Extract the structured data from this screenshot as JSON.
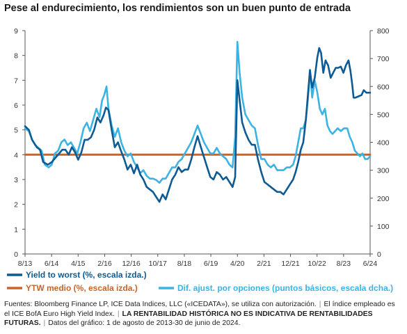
{
  "title": "Pese al endurecimiento, los rendimientos son un buen punto de entrada",
  "colors": {
    "ytw": "#0d5a94",
    "oas": "#3bb3e3",
    "avg": "#c8642a",
    "axis": "#555555"
  },
  "chart_data": {
    "type": "line",
    "x_tick_labels": [
      "8/13",
      "6/14",
      "4/15",
      "2/16",
      "12/16",
      "10/17",
      "8/18",
      "6/19",
      "4/20",
      "2/21",
      "12/21",
      "10/22",
      "8/23",
      "6/24"
    ],
    "left_axis": {
      "ylim": [
        0,
        9
      ],
      "ticks": [
        0,
        1,
        2,
        3,
        4,
        5,
        6,
        7,
        8,
        9
      ]
    },
    "right_axis": {
      "ylim": [
        0,
        800
      ],
      "ticks": [
        0,
        100,
        200,
        300,
        400,
        500,
        600,
        700,
        800
      ]
    },
    "series": [
      {
        "name": "Yield to worst (%, escala izda.)",
        "axis": "left",
        "color": "#0d5a94",
        "points": [
          [
            2013.58,
            5.15
          ],
          [
            2013.7,
            5.0
          ],
          [
            2013.8,
            4.6
          ],
          [
            2013.95,
            4.3
          ],
          [
            2014.05,
            4.2
          ],
          [
            2014.15,
            3.7
          ],
          [
            2014.3,
            3.6
          ],
          [
            2014.42,
            3.7
          ],
          [
            2014.55,
            3.9
          ],
          [
            2014.65,
            4.05
          ],
          [
            2014.75,
            4.2
          ],
          [
            2014.85,
            4.2
          ],
          [
            2014.95,
            4.0
          ],
          [
            2015.05,
            4.3
          ],
          [
            2015.15,
            4.1
          ],
          [
            2015.25,
            3.8
          ],
          [
            2015.35,
            4.1
          ],
          [
            2015.45,
            4.6
          ],
          [
            2015.55,
            4.6
          ],
          [
            2015.65,
            4.7
          ],
          [
            2015.75,
            5.0
          ],
          [
            2015.85,
            5.5
          ],
          [
            2015.95,
            5.3
          ],
          [
            2016.05,
            5.6
          ],
          [
            2016.12,
            5.9
          ],
          [
            2016.2,
            5.8
          ],
          [
            2016.3,
            5.0
          ],
          [
            2016.4,
            4.3
          ],
          [
            2016.5,
            4.5
          ],
          [
            2016.58,
            4.2
          ],
          [
            2016.7,
            3.8
          ],
          [
            2016.8,
            3.4
          ],
          [
            2016.9,
            3.6
          ],
          [
            2017.0,
            3.25
          ],
          [
            2017.1,
            3.6
          ],
          [
            2017.2,
            3.2
          ],
          [
            2017.3,
            3.0
          ],
          [
            2017.4,
            2.7
          ],
          [
            2017.5,
            2.6
          ],
          [
            2017.6,
            2.5
          ],
          [
            2017.7,
            2.3
          ],
          [
            2017.8,
            2.1
          ],
          [
            2017.9,
            2.4
          ],
          [
            2018.0,
            2.2
          ],
          [
            2018.1,
            2.6
          ],
          [
            2018.2,
            3.0
          ],
          [
            2018.3,
            3.2
          ],
          [
            2018.4,
            3.5
          ],
          [
            2018.5,
            3.3
          ],
          [
            2018.6,
            3.4
          ],
          [
            2018.7,
            3.4
          ],
          [
            2018.8,
            3.8
          ],
          [
            2018.9,
            4.3
          ],
          [
            2019.0,
            4.75
          ],
          [
            2019.08,
            4.4
          ],
          [
            2019.2,
            3.9
          ],
          [
            2019.3,
            3.5
          ],
          [
            2019.4,
            3.1
          ],
          [
            2019.5,
            3.0
          ],
          [
            2019.6,
            3.3
          ],
          [
            2019.7,
            3.2
          ],
          [
            2019.8,
            3.0
          ],
          [
            2019.9,
            3.1
          ],
          [
            2020.0,
            2.9
          ],
          [
            2020.1,
            2.7
          ],
          [
            2020.18,
            3.1
          ],
          [
            2020.25,
            7.0
          ],
          [
            2020.32,
            6.2
          ],
          [
            2020.4,
            5.3
          ],
          [
            2020.5,
            4.9
          ],
          [
            2020.6,
            4.6
          ],
          [
            2020.7,
            4.4
          ],
          [
            2020.8,
            4.4
          ],
          [
            2020.9,
            3.8
          ],
          [
            2021.0,
            3.3
          ],
          [
            2021.1,
            2.9
          ],
          [
            2021.2,
            2.8
          ],
          [
            2021.3,
            2.7
          ],
          [
            2021.4,
            2.6
          ],
          [
            2021.5,
            2.5
          ],
          [
            2021.6,
            2.5
          ],
          [
            2021.7,
            2.4
          ],
          [
            2021.8,
            2.6
          ],
          [
            2021.9,
            2.8
          ],
          [
            2022.0,
            3.0
          ],
          [
            2022.08,
            3.3
          ],
          [
            2022.16,
            3.7
          ],
          [
            2022.24,
            4.2
          ],
          [
            2022.32,
            4.5
          ],
          [
            2022.4,
            5.4
          ],
          [
            2022.47,
            6.5
          ],
          [
            2022.53,
            7.4
          ],
          [
            2022.6,
            6.7
          ],
          [
            2022.68,
            7.1
          ],
          [
            2022.76,
            7.9
          ],
          [
            2022.82,
            8.3
          ],
          [
            2022.88,
            8.1
          ],
          [
            2022.95,
            7.3
          ],
          [
            2023.02,
            7.8
          ],
          [
            2023.1,
            7.6
          ],
          [
            2023.18,
            7.1
          ],
          [
            2023.26,
            7.3
          ],
          [
            2023.34,
            7.5
          ],
          [
            2023.42,
            7.5
          ],
          [
            2023.5,
            7.55
          ],
          [
            2023.58,
            7.3
          ],
          [
            2023.66,
            7.6
          ],
          [
            2023.74,
            7.8
          ],
          [
            2023.8,
            7.4
          ],
          [
            2023.86,
            6.8
          ],
          [
            2023.9,
            6.3
          ],
          [
            2023.96,
            6.3
          ],
          [
            2024.05,
            6.35
          ],
          [
            2024.15,
            6.4
          ],
          [
            2024.22,
            6.6
          ],
          [
            2024.3,
            6.5
          ],
          [
            2024.42,
            6.5
          ]
        ]
      },
      {
        "name": "Dif. ajust. por opciones (puntos básicos, escala dcha.)",
        "axis": "right",
        "color": "#3bb3e3",
        "points": [
          [
            2013.58,
            450
          ],
          [
            2013.7,
            440
          ],
          [
            2013.8,
            410
          ],
          [
            2013.9,
            390
          ],
          [
            2014.0,
            380
          ],
          [
            2014.1,
            370
          ],
          [
            2014.2,
            320
          ],
          [
            2014.32,
            310
          ],
          [
            2014.42,
            320
          ],
          [
            2014.52,
            360
          ],
          [
            2014.62,
            370
          ],
          [
            2014.72,
            400
          ],
          [
            2014.82,
            410
          ],
          [
            2014.92,
            390
          ],
          [
            2015.02,
            400
          ],
          [
            2015.12,
            380
          ],
          [
            2015.22,
            360
          ],
          [
            2015.32,
            400
          ],
          [
            2015.42,
            450
          ],
          [
            2015.52,
            470
          ],
          [
            2015.62,
            440
          ],
          [
            2015.72,
            480
          ],
          [
            2015.82,
            520
          ],
          [
            2015.92,
            490
          ],
          [
            2016.0,
            550
          ],
          [
            2016.07,
            570
          ],
          [
            2016.14,
            600
          ],
          [
            2016.2,
            520
          ],
          [
            2016.3,
            460
          ],
          [
            2016.4,
            420
          ],
          [
            2016.5,
            450
          ],
          [
            2016.6,
            400
          ],
          [
            2016.7,
            370
          ],
          [
            2016.8,
            350
          ],
          [
            2016.9,
            360
          ],
          [
            2017.0,
            330
          ],
          [
            2017.1,
            310
          ],
          [
            2017.2,
            290
          ],
          [
            2017.3,
            300
          ],
          [
            2017.4,
            280
          ],
          [
            2017.5,
            270
          ],
          [
            2017.6,
            270
          ],
          [
            2017.7,
            265
          ],
          [
            2017.8,
            255
          ],
          [
            2017.9,
            270
          ],
          [
            2018.0,
            270
          ],
          [
            2018.1,
            290
          ],
          [
            2018.2,
            310
          ],
          [
            2018.3,
            310
          ],
          [
            2018.4,
            330
          ],
          [
            2018.5,
            340
          ],
          [
            2018.6,
            360
          ],
          [
            2018.7,
            380
          ],
          [
            2018.8,
            400
          ],
          [
            2018.9,
            430
          ],
          [
            2019.0,
            460
          ],
          [
            2019.1,
            430
          ],
          [
            2019.2,
            400
          ],
          [
            2019.3,
            380
          ],
          [
            2019.4,
            360
          ],
          [
            2019.5,
            360
          ],
          [
            2019.6,
            380
          ],
          [
            2019.7,
            360
          ],
          [
            2019.8,
            350
          ],
          [
            2019.9,
            340
          ],
          [
            2020.0,
            320
          ],
          [
            2020.1,
            310
          ],
          [
            2020.18,
            420
          ],
          [
            2020.25,
            760
          ],
          [
            2020.32,
            650
          ],
          [
            2020.4,
            560
          ],
          [
            2020.5,
            500
          ],
          [
            2020.6,
            480
          ],
          [
            2020.7,
            460
          ],
          [
            2020.8,
            450
          ],
          [
            2020.9,
            390
          ],
          [
            2021.0,
            340
          ],
          [
            2021.1,
            340
          ],
          [
            2021.2,
            320
          ],
          [
            2021.3,
            310
          ],
          [
            2021.4,
            320
          ],
          [
            2021.5,
            300
          ],
          [
            2021.6,
            300
          ],
          [
            2021.7,
            300
          ],
          [
            2021.8,
            310
          ],
          [
            2021.9,
            310
          ],
          [
            2022.0,
            320
          ],
          [
            2022.08,
            350
          ],
          [
            2022.16,
            400
          ],
          [
            2022.24,
            450
          ],
          [
            2022.32,
            450
          ],
          [
            2022.4,
            480
          ],
          [
            2022.47,
            560
          ],
          [
            2022.53,
            660
          ],
          [
            2022.6,
            560
          ],
          [
            2022.68,
            620
          ],
          [
            2022.76,
            580
          ],
          [
            2022.84,
            520
          ],
          [
            2022.92,
            500
          ],
          [
            2023.0,
            520
          ],
          [
            2023.08,
            460
          ],
          [
            2023.16,
            440
          ],
          [
            2023.24,
            430
          ],
          [
            2023.32,
            440
          ],
          [
            2023.4,
            450
          ],
          [
            2023.5,
            440
          ],
          [
            2023.6,
            450
          ],
          [
            2023.7,
            450
          ],
          [
            2023.78,
            420
          ],
          [
            2023.86,
            400
          ],
          [
            2023.94,
            370
          ],
          [
            2024.02,
            360
          ],
          [
            2024.1,
            350
          ],
          [
            2024.18,
            360
          ],
          [
            2024.26,
            340
          ],
          [
            2024.34,
            340
          ],
          [
            2024.42,
            350
          ]
        ]
      },
      {
        "name": "YTW medio (%, escala izda.)",
        "axis": "left",
        "color": "#c8642a",
        "points": [
          [
            2013.58,
            4.0
          ],
          [
            2024.42,
            4.0
          ]
        ]
      }
    ],
    "legend": [
      {
        "label": "Yield to worst (%, escala izda.)",
        "color": "#0d5a94"
      },
      {
        "label": "YTW medio (%, escala izda.)",
        "color": "#c8642a"
      },
      {
        "label": "Dif. ajust. por opciones (puntos básicos, escala dcha.)",
        "color": "#3bb3e3"
      }
    ],
    "legend_placement": "bottom",
    "grid": false
  },
  "footnote": {
    "part1": "Fuentes: Bloomberg Finance LP, ICE Data Indices, LLC («ICEDATA»), se utiliza con autorización.",
    "sep": "|",
    "part2": "El índice empleado es el ICE BofA Euro High Yield Index.",
    "part3": "LA RENTABILIDAD HISTÓRICA NO ES INDICATIVA DE RENTABILIDADES FUTURAS.",
    "part4": "Datos del gráfico: 1 de agosto de 2013-30 de junio de 2024."
  }
}
